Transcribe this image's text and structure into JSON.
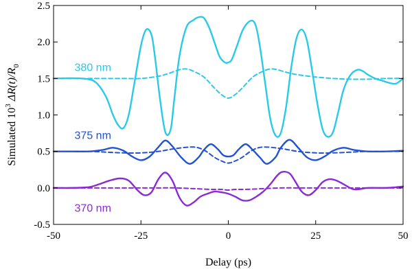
{
  "chart_data": {
    "type": "line",
    "title": "",
    "xlabel": "Delay (ps)",
    "ylabel_parts": {
      "prefix": "Simulated  10",
      "sup": "3",
      "mid": " ΔR(t)/R",
      "sub": "0"
    },
    "xlim": [
      -50,
      50
    ],
    "ylim": [
      -0.5,
      2.5
    ],
    "xticks": [
      -50,
      -25,
      0,
      25,
      50
    ],
    "xtick_labels": [
      "-50",
      "-25",
      "0",
      "25",
      "50"
    ],
    "yticks": [
      -0.5,
      0.0,
      0.5,
      1.0,
      1.5,
      2.0,
      2.5
    ],
    "ytick_labels": [
      "-0.5",
      "0.0",
      "0.5",
      "1.0",
      "1.5",
      "2.0",
      "2.5"
    ],
    "grid": false,
    "legend": "inline labels",
    "series": [
      {
        "name": "380 nm",
        "color": "#29c9ea",
        "style": "solid",
        "x": [
          -50,
          -42,
          -38,
          -35,
          -33,
          -31.5,
          -30,
          -28.5,
          -27,
          -25,
          -23.5,
          -22,
          -21,
          -19.5,
          -18,
          -16.5,
          -15.5,
          -14,
          -12,
          -10,
          -8.5,
          -7,
          -5.5,
          -4,
          -2.5,
          -1,
          0,
          1,
          2.5,
          4,
          5.5,
          7,
          8,
          9,
          10.5,
          12,
          13.5,
          15,
          16.5,
          18,
          19.5,
          21,
          22.5,
          24,
          25.5,
          27,
          28.5,
          30,
          31.5,
          33,
          35,
          37,
          38.5,
          40,
          42,
          44,
          46,
          48,
          50
        ],
        "y": [
          1.5,
          1.5,
          1.45,
          1.25,
          1.0,
          0.86,
          0.82,
          1.0,
          1.4,
          1.95,
          2.17,
          2.1,
          1.8,
          1.2,
          0.76,
          0.8,
          1.2,
          1.8,
          2.2,
          2.3,
          2.34,
          2.33,
          2.2,
          2.0,
          1.8,
          1.72,
          1.72,
          1.76,
          1.95,
          2.15,
          2.26,
          2.29,
          2.2,
          1.95,
          1.45,
          0.95,
          0.72,
          0.75,
          1.1,
          1.65,
          2.05,
          2.17,
          2.02,
          1.6,
          1.15,
          0.8,
          0.7,
          0.77,
          1.05,
          1.35,
          1.55,
          1.62,
          1.6,
          1.55,
          1.5,
          1.47,
          1.44,
          1.43,
          1.5
        ]
      },
      {
        "name": "380 nm",
        "color": "#29c9ea",
        "style": "dashed",
        "x": [
          -50,
          -35,
          -30,
          -25,
          -20,
          -17,
          -14,
          -12,
          -10,
          -7,
          -4,
          -2,
          0,
          2,
          4,
          7,
          10,
          12,
          14,
          17,
          20,
          25,
          30,
          35,
          40,
          45,
          50
        ],
        "y": [
          1.5,
          1.5,
          1.5,
          1.5,
          1.53,
          1.57,
          1.62,
          1.63,
          1.6,
          1.52,
          1.37,
          1.28,
          1.23,
          1.28,
          1.37,
          1.52,
          1.6,
          1.63,
          1.62,
          1.58,
          1.55,
          1.52,
          1.5,
          1.49,
          1.49,
          1.5,
          1.5
        ]
      },
      {
        "name": "375 nm",
        "color": "#2152d6",
        "style": "solid",
        "x": [
          -50,
          -45,
          -40,
          -36,
          -33,
          -30,
          -27.5,
          -25,
          -22.5,
          -20,
          -18,
          -16,
          -13.5,
          -11,
          -8.5,
          -7,
          -5,
          -3,
          -1.5,
          0,
          1.5,
          3,
          5,
          7,
          9,
          11,
          13.5,
          15,
          17.5,
          20,
          22.5,
          25,
          27.5,
          30,
          33,
          36,
          40,
          45,
          50
        ],
        "y": [
          0.5,
          0.5,
          0.5,
          0.52,
          0.55,
          0.51,
          0.43,
          0.38,
          0.43,
          0.56,
          0.65,
          0.57,
          0.42,
          0.33,
          0.42,
          0.52,
          0.6,
          0.53,
          0.45,
          0.43,
          0.45,
          0.53,
          0.6,
          0.52,
          0.42,
          0.33,
          0.42,
          0.55,
          0.66,
          0.55,
          0.42,
          0.38,
          0.43,
          0.51,
          0.55,
          0.52,
          0.5,
          0.5,
          0.51
        ]
      },
      {
        "name": "375 nm",
        "color": "#2152d6",
        "style": "dashed",
        "x": [
          -50,
          -40,
          -35,
          -30,
          -25,
          -20,
          -15,
          -10,
          -7,
          -4,
          -2,
          0,
          2,
          4,
          7,
          10,
          15,
          20,
          25,
          30,
          35,
          40,
          50
        ],
        "y": [
          0.5,
          0.5,
          0.49,
          0.48,
          0.48,
          0.5,
          0.54,
          0.56,
          0.52,
          0.42,
          0.37,
          0.34,
          0.37,
          0.42,
          0.52,
          0.56,
          0.54,
          0.5,
          0.48,
          0.48,
          0.49,
          0.5,
          0.5
        ]
      },
      {
        "name": "370 nm",
        "color": "#8a29d6",
        "style": "solid",
        "x": [
          -50,
          -45,
          -40,
          -37,
          -34,
          -31,
          -28.5,
          -26,
          -24,
          -22,
          -20,
          -18,
          -16,
          -14,
          -12,
          -10,
          -8,
          -6,
          -4,
          -2,
          0,
          2,
          4,
          6,
          8,
          10,
          12,
          14,
          15.5,
          17.5,
          19,
          21,
          23,
          25,
          27,
          29,
          31,
          33,
          36,
          40,
          45,
          48,
          50
        ],
        "y": [
          0.0,
          0.0,
          0.01,
          0.05,
          0.1,
          0.13,
          0.1,
          -0.03,
          -0.1,
          -0.06,
          0.12,
          0.21,
          0.1,
          -0.13,
          -0.24,
          -0.2,
          -0.12,
          -0.08,
          -0.05,
          -0.06,
          -0.08,
          -0.12,
          -0.17,
          -0.17,
          -0.12,
          -0.05,
          0.05,
          0.17,
          0.22,
          0.2,
          0.1,
          -0.05,
          -0.1,
          -0.03,
          0.08,
          0.12,
          0.1,
          0.05,
          -0.02,
          0.0,
          0.0,
          0.01,
          0.02
        ]
      },
      {
        "name": "370 nm",
        "color": "#8a29d6",
        "style": "dashed",
        "x": [
          -50,
          -40,
          -30,
          -20,
          -15,
          -10,
          -5,
          -2,
          0,
          2,
          5,
          10,
          15,
          20,
          30,
          40,
          50
        ],
        "y": [
          0.0,
          0.0,
          0.0,
          0.0,
          0.0,
          -0.01,
          -0.02,
          -0.02,
          -0.03,
          -0.02,
          -0.02,
          -0.01,
          0.0,
          0.0,
          0.0,
          0.0,
          0.0
        ]
      }
    ],
    "annotations": [
      {
        "text": "380 nm",
        "x": -44,
        "y": 1.65,
        "color": "#29c9ea"
      },
      {
        "text": "375 nm",
        "x": -44,
        "y": 0.72,
        "color": "#2152d6"
      },
      {
        "text": "370 nm",
        "x": -44,
        "y": -0.28,
        "color": "#8a29d6"
      }
    ]
  }
}
